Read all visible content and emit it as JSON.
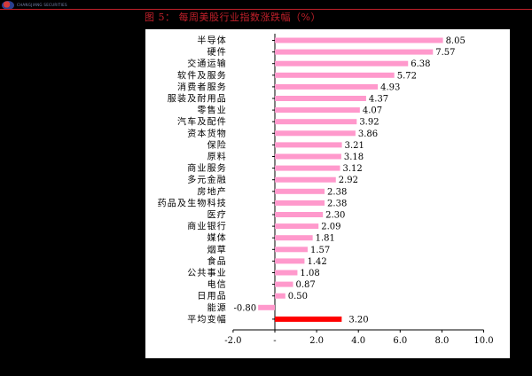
{
  "header": {
    "logo_text": "CHANGJIANG SECURITIES",
    "figure_title": "图 5：   每周美股行业指数涨跌幅（%）"
  },
  "colors": {
    "bar": "#ff99cc",
    "highlight_bar": "#ff0000",
    "title": "#c0202a",
    "panel": "#ffffff"
  },
  "chart_data": {
    "type": "bar",
    "orientation": "horizontal",
    "title": "",
    "xlabel": "",
    "ylabel": "",
    "xlim": [
      -2.0,
      10.0
    ],
    "x_ticks": [
      "-2.0",
      "-",
      "2.0",
      "4.0",
      "6.0",
      "8.0",
      "10.0"
    ],
    "x_tick_values": [
      -2,
      0,
      2,
      4,
      6,
      8,
      10
    ],
    "grid": false,
    "categories": [
      "半导体",
      "硬件",
      "交通运输",
      "软件及服务",
      "消费者服务",
      "服装及耐用品",
      "零售业",
      "汽车及配件",
      "资本货物",
      "保险",
      "原料",
      "商业服务",
      "多元金融",
      "房地产",
      "药品及生物科技",
      "医疗",
      "商业银行",
      "媒体",
      "烟草",
      "食品",
      "公共事业",
      "电信",
      "日用品",
      "能源",
      "平均变幅"
    ],
    "values": [
      8.05,
      7.57,
      6.38,
      5.72,
      4.93,
      4.37,
      4.07,
      3.92,
      3.86,
      3.21,
      3.18,
      3.12,
      2.92,
      2.38,
      2.38,
      2.3,
      2.09,
      1.81,
      1.57,
      1.42,
      1.08,
      0.87,
      0.5,
      -0.8,
      3.2
    ],
    "labels": [
      "8.05",
      "7.57",
      "6.38",
      "5.72",
      "4.93",
      "4.37",
      "4.07",
      "3.92",
      "3.86",
      "3.21",
      "3.18",
      "3.12",
      "2.92",
      "2.38",
      "2.38",
      "2.30",
      "2.09",
      "1.81",
      "1.57",
      "1.42",
      "1.08",
      "0.87",
      "0.50",
      "-0.80",
      "3.20"
    ],
    "highlight_index": 24
  }
}
